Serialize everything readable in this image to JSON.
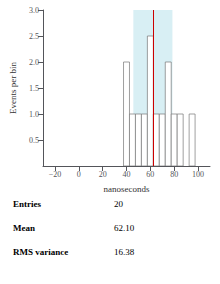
{
  "chart_data": {
    "type": "histogram",
    "xlabel": "nanoseconds",
    "ylabel": "Events per bin",
    "xlim": [
      -30,
      110
    ],
    "ylim": [
      0,
      3.0
    ],
    "xticks": [
      {
        "value": -20,
        "label": "−20"
      },
      0,
      20,
      40,
      60,
      80,
      100
    ],
    "yticks": [
      0.5,
      {
        "value": 1.0,
        "label": "1.0"
      },
      1.5,
      {
        "value": 2.0,
        "label": "2.0"
      },
      2.5,
      {
        "value": 3.0,
        "label": "3.0"
      }
    ],
    "bins": [
      37.5,
      42.5,
      47.5,
      52.5,
      57.5,
      62.5,
      67.5,
      72.5,
      77.5,
      82.5,
      87.5,
      92.5,
      97.5
    ],
    "values": [
      2.0,
      1.0,
      1.0,
      1.0,
      2.5,
      1.0,
      1.0,
      2.0,
      1.0,
      1.0,
      0.0,
      1.0
    ],
    "color": "white",
    "mean_line": {
      "value": 62.1,
      "color": "#cc0000"
    },
    "band": {
      "range": [
        45.72,
        78.48
      ],
      "color": "#c8e8f0"
    },
    "grid": false,
    "stats": [
      [
        "Entries",
        "20"
      ],
      [
        "Mean",
        "62.10"
      ],
      [
        "RMS variance",
        "16.38"
      ]
    ]
  }
}
